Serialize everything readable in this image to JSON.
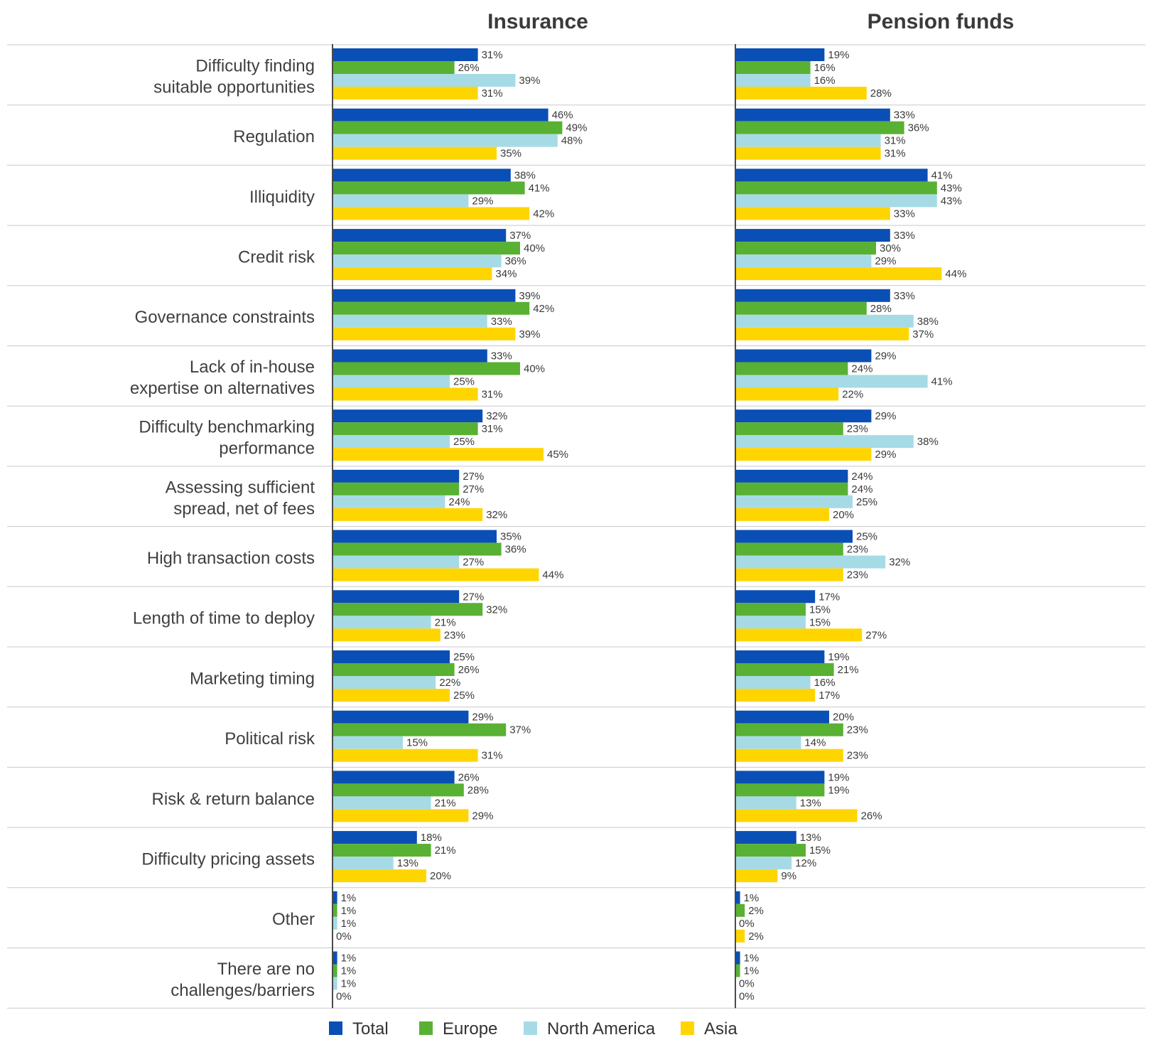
{
  "chart_data": {
    "type": "bar",
    "orientation": "horizontal",
    "panels": [
      "Insurance",
      "Pension funds"
    ],
    "categories": [
      [
        "Difficulty finding",
        "suitable opportunities"
      ],
      [
        "Regulation"
      ],
      [
        "Illiquidity"
      ],
      [
        "Credit risk"
      ],
      [
        "Governance constraints"
      ],
      [
        "Lack of in-house",
        "expertise on alternatives"
      ],
      [
        "Difficulty benchmarking",
        "performance"
      ],
      [
        "Assessing sufficient",
        "spread, net of fees"
      ],
      [
        "High transaction costs"
      ],
      [
        "Length of time to deploy"
      ],
      [
        "Marketing timing"
      ],
      [
        "Political risk"
      ],
      [
        "Risk & return balance"
      ],
      [
        "Difficulty pricing assets"
      ],
      [
        "Other"
      ],
      [
        "There are no",
        "challenges/barriers"
      ]
    ],
    "series": [
      {
        "name": "Total",
        "color": "#0a4fb5"
      },
      {
        "name": "Europe",
        "color": "#58b133"
      },
      {
        "name": "North America",
        "color": "#a6dbe6"
      },
      {
        "name": "Asia",
        "color": "#ffd500"
      }
    ],
    "values": {
      "Insurance": [
        [
          31,
          26,
          39,
          31
        ],
        [
          46,
          49,
          48,
          35
        ],
        [
          38,
          41,
          29,
          42
        ],
        [
          37,
          40,
          36,
          34
        ],
        [
          39,
          42,
          33,
          39
        ],
        [
          33,
          40,
          25,
          31
        ],
        [
          32,
          31,
          25,
          45
        ],
        [
          27,
          27,
          24,
          32
        ],
        [
          35,
          36,
          27,
          44
        ],
        [
          27,
          32,
          21,
          23
        ],
        [
          25,
          26,
          22,
          25
        ],
        [
          29,
          37,
          15,
          31
        ],
        [
          26,
          28,
          21,
          29
        ],
        [
          18,
          21,
          13,
          20
        ],
        [
          1,
          1,
          1,
          0
        ],
        [
          1,
          1,
          1,
          0
        ]
      ],
      "Pension funds": [
        [
          19,
          16,
          16,
          28
        ],
        [
          33,
          36,
          31,
          31
        ],
        [
          41,
          43,
          43,
          33
        ],
        [
          33,
          30,
          29,
          44
        ],
        [
          33,
          28,
          38,
          37
        ],
        [
          29,
          24,
          41,
          22
        ],
        [
          29,
          23,
          38,
          29
        ],
        [
          24,
          24,
          25,
          20
        ],
        [
          25,
          23,
          32,
          23
        ],
        [
          17,
          15,
          15,
          27
        ],
        [
          19,
          21,
          16,
          17
        ],
        [
          20,
          23,
          14,
          23
        ],
        [
          19,
          19,
          13,
          26
        ],
        [
          13,
          15,
          12,
          9
        ],
        [
          1,
          2,
          0,
          2
        ],
        [
          1,
          1,
          0,
          0
        ]
      ]
    },
    "value_suffix": "%",
    "xlim": [
      0,
      100
    ],
    "legend_position": "bottom"
  }
}
